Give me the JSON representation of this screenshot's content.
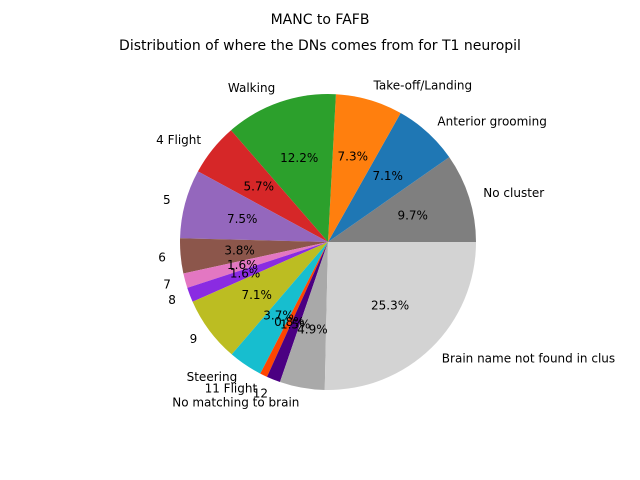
{
  "chart_data": {
    "type": "pie",
    "title": "MANC to FAFB",
    "subtitle": "Distribution of where the DNs comes from for T1 neuropil",
    "slices": [
      {
        "label": "No cluster",
        "pct_label": "9.7%",
        "value": 9.7,
        "color": "#7f7f7f"
      },
      {
        "label": "Anterior grooming",
        "pct_label": "7.1%",
        "value": 7.1,
        "color": "#1f77b4"
      },
      {
        "label": "Take-off/Landing",
        "pct_label": "7.3%",
        "value": 7.3,
        "color": "#ff7f0e"
      },
      {
        "label": "Walking",
        "pct_label": "12.2%",
        "value": 12.2,
        "color": "#2ca02c"
      },
      {
        "label": "4 Flight",
        "pct_label": "5.7%",
        "value": 5.7,
        "color": "#d62728"
      },
      {
        "label": "5",
        "pct_label": "7.5%",
        "value": 7.5,
        "color": "#9467bd"
      },
      {
        "label": "6",
        "pct_label": "3.8%",
        "value": 3.8,
        "color": "#8c564b"
      },
      {
        "label": "7",
        "pct_label": "1.6%",
        "value": 1.6,
        "color": "#e377c2"
      },
      {
        "label": "8",
        "pct_label": "1.6%",
        "value": 1.6,
        "color": "#8a2be2"
      },
      {
        "label": "9",
        "pct_label": "7.1%",
        "value": 7.1,
        "color": "#bcbd22"
      },
      {
        "label": "Steering",
        "pct_label": "3.7%",
        "value": 3.7,
        "color": "#17becf"
      },
      {
        "label": "11 Flight",
        "pct_label": "0.8%",
        "value": 0.8,
        "color": "#ff4500"
      },
      {
        "label": "12",
        "pct_label": "1.5%",
        "value": 1.5,
        "color": "#4b0082"
      },
      {
        "label": "No matching to brain",
        "pct_label": "4.9%",
        "value": 4.9,
        "color": "#a9a9a9"
      },
      {
        "label": "Brain name not found in clus",
        "pct_label": "25.3%",
        "value": 25.3,
        "color": "#d3d3d3"
      }
    ]
  }
}
